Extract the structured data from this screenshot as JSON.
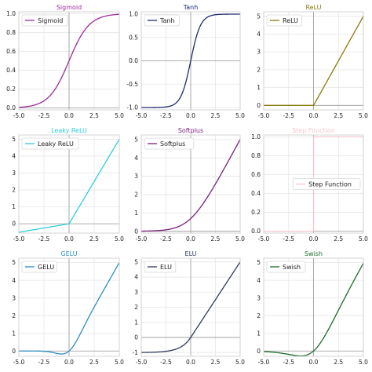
{
  "chart_data": [
    {
      "type": "line",
      "title": "Sigmoid",
      "function": "sigmoid",
      "color": "#9c2a9c",
      "series": [
        {
          "name": "Sigmoid"
        }
      ],
      "xlim": [
        -5,
        5
      ],
      "ylim": [
        -0.02,
        1.02
      ],
      "xticks": [
        -5.0,
        -2.5,
        0.0,
        2.5,
        5.0
      ],
      "xtick_labels": [
        "-5.0",
        "-2.5",
        "0.0",
        "2.5",
        "5.0"
      ],
      "yticks": [
        0.0,
        0.2,
        0.4,
        0.6,
        0.8,
        1.0
      ],
      "ytick_labels": [
        "0.0",
        "0.2",
        "0.4",
        "0.6",
        "0.8",
        "1.0"
      ],
      "grid": true,
      "legend": "upper left"
    },
    {
      "type": "line",
      "title": "Tanh",
      "function": "tanh",
      "color": "#1f2a6e",
      "series": [
        {
          "name": "Tanh"
        }
      ],
      "xlim": [
        -5,
        5
      ],
      "ylim": [
        -1.05,
        1.05
      ],
      "xticks": [
        -5.0,
        -2.5,
        0.0,
        2.5,
        5.0
      ],
      "xtick_labels": [
        "-5.0",
        "-2.5",
        "0.0",
        "2.5",
        "5.0"
      ],
      "yticks": [
        -1.0,
        -0.5,
        0.0,
        0.5,
        1.0
      ],
      "ytick_labels": [
        "-1.0",
        "-0.5",
        "0.0",
        "0.5",
        "1.0"
      ],
      "grid": true,
      "legend": "upper left"
    },
    {
      "type": "line",
      "title": "ReLU",
      "function": "relu",
      "color": "#8b7a0a",
      "series": [
        {
          "name": "ReLU"
        }
      ],
      "xlim": [
        -5,
        5
      ],
      "ylim": [
        -0.25,
        5.25
      ],
      "xticks": [
        -5.0,
        -2.5,
        0.0,
        2.5,
        5.0
      ],
      "xtick_labels": [
        "-5.0",
        "-2.5",
        "0.0",
        "2.5",
        "5.0"
      ],
      "yticks": [
        0,
        1,
        2,
        3,
        4,
        5
      ],
      "ytick_labels": [
        "0",
        "1",
        "2",
        "3",
        "4",
        "5"
      ],
      "grid": true,
      "legend": "upper left"
    },
    {
      "type": "line",
      "title": "Leaky ReLU",
      "function": "leaky_relu",
      "color": "#2ecfd8",
      "series": [
        {
          "name": "Leaky ReLU"
        }
      ],
      "xlim": [
        -5,
        5
      ],
      "ylim": [
        -0.55,
        5.25
      ],
      "xticks": [
        -5.0,
        -2.5,
        0.0,
        2.5,
        5.0
      ],
      "xtick_labels": [
        "-5.0",
        "-2.5",
        "0.0",
        "2.5",
        "5.0"
      ],
      "yticks": [
        0,
        1,
        2,
        3,
        4,
        5
      ],
      "ytick_labels": [
        "0",
        "1",
        "2",
        "3",
        "4",
        "5"
      ],
      "grid": true,
      "legend": "upper left"
    },
    {
      "type": "line",
      "title": "Softplus",
      "function": "softplus",
      "color": "#7a1f7a",
      "series": [
        {
          "name": "Softplus"
        }
      ],
      "xlim": [
        -5,
        5
      ],
      "ylim": [
        -0.1,
        5.25
      ],
      "xticks": [
        -5.0,
        -2.5,
        0.0,
        2.5,
        5.0
      ],
      "xtick_labels": [
        "-5.0",
        "-2.5",
        "0.0",
        "2.5",
        "5.0"
      ],
      "yticks": [
        0,
        1,
        2,
        3,
        4,
        5
      ],
      "ytick_labels": [
        "0",
        "1",
        "2",
        "3",
        "4",
        "5"
      ],
      "grid": true,
      "legend": "upper left"
    },
    {
      "type": "line",
      "title": "Step Function",
      "function": "step",
      "color": "#f7c6cf",
      "series": [
        {
          "name": "Step Function"
        }
      ],
      "xlim": [
        -5,
        5
      ],
      "ylim": [
        -0.02,
        1.02
      ],
      "xticks": [
        -5.0,
        -2.5,
        0.0,
        2.5,
        5.0
      ],
      "xtick_labels": [
        "-5.0",
        "-2.5",
        "0.0",
        "2.5",
        "5.0"
      ],
      "yticks": [
        0.0,
        0.2,
        0.4,
        0.6,
        0.8,
        1.0
      ],
      "ytick_labels": [
        "0.0",
        "0.2",
        "0.4",
        "0.6",
        "0.8",
        "1.0"
      ],
      "grid": true,
      "legend": "center right"
    },
    {
      "type": "line",
      "title": "GELU",
      "function": "gelu",
      "color": "#2a8fc0",
      "series": [
        {
          "name": "GELU"
        }
      ],
      "xlim": [
        -5,
        5
      ],
      "ylim": [
        -0.3,
        5.25
      ],
      "xticks": [
        -5.0,
        -2.5,
        0.0,
        2.5,
        5.0
      ],
      "xtick_labels": [
        "-5.0",
        "-2.5",
        "0.0",
        "2.5",
        "5.0"
      ],
      "yticks": [
        0,
        1,
        2,
        3,
        4,
        5
      ],
      "ytick_labels": [
        "0",
        "1",
        "2",
        "3",
        "4",
        "5"
      ],
      "grid": true,
      "legend": "upper left"
    },
    {
      "type": "line",
      "title": "ELU",
      "function": "elu",
      "color": "#2e3a5c",
      "series": [
        {
          "name": "ELU"
        }
      ],
      "xlim": [
        -5,
        5
      ],
      "ylim": [
        -1.25,
        5.25
      ],
      "xticks": [
        -5.0,
        -2.5,
        0.0,
        2.5,
        5.0
      ],
      "xtick_labels": [
        "-5.0",
        "-2.5",
        "0.0",
        "2.5",
        "5.0"
      ],
      "yticks": [
        -1,
        0,
        1,
        2,
        3,
        4,
        5
      ],
      "ytick_labels": [
        "-1",
        "0",
        "1",
        "2",
        "3",
        "4",
        "5"
      ],
      "grid": true,
      "legend": "upper left"
    },
    {
      "type": "line",
      "title": "Swish",
      "function": "swish",
      "color": "#1b6b2a",
      "series": [
        {
          "name": "Swish"
        }
      ],
      "xlim": [
        -5,
        5
      ],
      "ylim": [
        -0.3,
        5.25
      ],
      "xticks": [
        -5.0,
        -2.5,
        0.0,
        2.5,
        5.0
      ],
      "xtick_labels": [
        "-5.0",
        "-2.5",
        "0.0",
        "2.5",
        "5.0"
      ],
      "yticks": [
        0,
        1,
        2,
        3,
        4,
        5
      ],
      "ytick_labels": [
        "0",
        "1",
        "2",
        "3",
        "4",
        "5"
      ],
      "grid": true,
      "legend": "upper left"
    }
  ]
}
